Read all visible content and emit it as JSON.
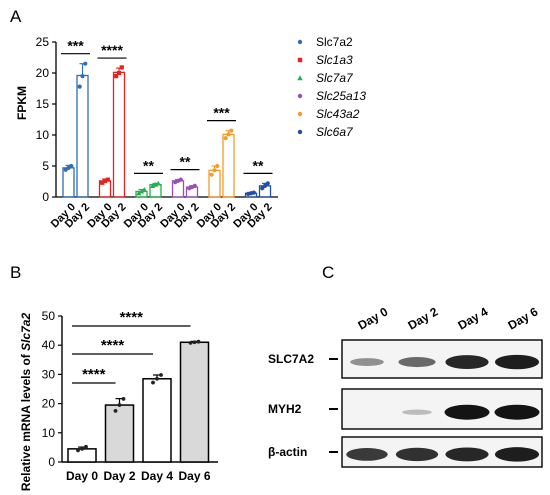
{
  "panels": {
    "a": {
      "letter": "A",
      "ylabel": "FPKM",
      "legend": [
        {
          "label": "Slc7a2",
          "italic": false,
          "color": "#2f6db5",
          "marker": "dot"
        },
        {
          "label": "Slc1a3",
          "italic": true,
          "color": "#e8201e",
          "marker": "square"
        },
        {
          "label": "Slc7a7",
          "italic": true,
          "color": "#22b14c",
          "marker": "triangle"
        },
        {
          "label": "Slc25a13",
          "italic": true,
          "color": "#9a4fb8",
          "marker": "dot"
        },
        {
          "label": "Slc43a2",
          "italic": true,
          "color": "#f39c2a",
          "marker": "dot"
        },
        {
          "label": "Slc6a7",
          "italic": true,
          "color": "#1f4fa8",
          "marker": "dot"
        }
      ]
    },
    "b": {
      "letter": "B",
      "ylabel_prefix": "Relative mRNA levels of ",
      "ylabel_gene": "Slc7a2"
    },
    "c": {
      "letter": "C",
      "lanes": [
        "Day 0",
        "Day 2",
        "Day 4",
        "Day 6"
      ],
      "rows": [
        {
          "label": "SLC7A2",
          "intensities": [
            0.35,
            0.55,
            0.9,
            0.95
          ]
        },
        {
          "label": "MYH2",
          "intensities": [
            0.0,
            0.12,
            1.0,
            1.0
          ]
        },
        {
          "label": "β-actin",
          "intensities": [
            0.8,
            0.85,
            0.9,
            0.95
          ]
        }
      ]
    }
  },
  "chart_data": [
    {
      "type": "bar",
      "categories": [
        "Day 0",
        "Day 2"
      ],
      "ylabel": "FPKM",
      "ylim": [
        0,
        25
      ],
      "yticks": [
        0,
        5,
        10,
        15,
        20,
        25
      ],
      "grid": false,
      "legend_position": "right",
      "series": [
        {
          "name": "Slc7a2",
          "color": "#2f6db5",
          "values": [
            4.7,
            19.6
          ],
          "errors": [
            0.4,
            1.9
          ],
          "points": [
            [
              4.4,
              4.7,
              5.0
            ],
            [
              17.8,
              19.5,
              21.5
            ]
          ],
          "significance": "***"
        },
        {
          "name": "Slc1a3",
          "color": "#e8201e",
          "values": [
            2.6,
            20.1
          ],
          "errors": [
            0.3,
            0.7
          ],
          "points": [
            [
              2.3,
              2.6,
              2.8
            ],
            [
              19.5,
              20.0,
              20.9
            ]
          ],
          "significance": "****"
        },
        {
          "name": "Slc7a7",
          "color": "#22b14c",
          "values": [
            0.9,
            2.0
          ],
          "errors": [
            0.3,
            0.2
          ],
          "points": [
            [
              0.6,
              0.9,
              1.2
            ],
            [
              1.8,
              2.0,
              2.2
            ]
          ],
          "significance": "**"
        },
        {
          "name": "Slc25a13",
          "color": "#9a4fb8",
          "values": [
            2.6,
            1.6
          ],
          "errors": [
            0.2,
            0.2
          ],
          "points": [
            [
              2.4,
              2.6,
              2.8
            ],
            [
              1.4,
              1.6,
              1.8
            ]
          ],
          "significance": "**"
        },
        {
          "name": "Slc43a2",
          "color": "#f39c2a",
          "values": [
            4.3,
            10.1
          ],
          "errors": [
            0.7,
            0.6
          ],
          "points": [
            [
              3.6,
              4.3,
              5.0
            ],
            [
              9.5,
              10.1,
              10.7
            ]
          ],
          "significance": "***"
        },
        {
          "name": "Slc6a7",
          "color": "#1f4fa8",
          "values": [
            0.6,
            1.8
          ],
          "errors": [
            0.1,
            0.4
          ],
          "points": [
            [
              0.5,
              0.6,
              0.7
            ],
            [
              1.4,
              1.8,
              2.2
            ]
          ],
          "significance": "**"
        }
      ]
    },
    {
      "type": "bar",
      "categories": [
        "Day 0",
        "Day 2",
        "Day 4",
        "Day 6"
      ],
      "ylabel": "Relative mRNA levels of Slc7a2",
      "ylim": [
        0,
        50
      ],
      "yticks": [
        0,
        10,
        20,
        30,
        40,
        50
      ],
      "grid": false,
      "series": [
        {
          "values": [
            4.5,
            19.5,
            28.5,
            41.0
          ],
          "errors": [
            0.6,
            2.2,
            1.3,
            0.3
          ],
          "points": [
            [
              4.0,
              4.5,
              5.2
            ],
            [
              17.5,
              19.5,
              21.6
            ],
            [
              27.2,
              28.5,
              29.8
            ],
            [
              40.8,
              41.0,
              41.2
            ]
          ],
          "fills": [
            "#ffffff",
            "#d9d9d9",
            "#ffffff",
            "#d9d9d9"
          ]
        }
      ],
      "comparisons": [
        {
          "from": "Day 0",
          "to": "Day 2",
          "label": "****"
        },
        {
          "from": "Day 0",
          "to": "Day 4",
          "label": "****"
        },
        {
          "from": "Day 0",
          "to": "Day 6",
          "label": "****"
        }
      ]
    }
  ]
}
